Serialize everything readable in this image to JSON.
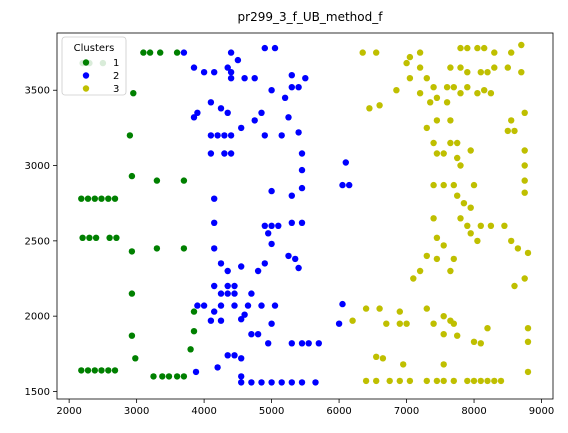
{
  "chart_data": {
    "type": "scatter",
    "title": "pr299_3_f_UB_method_f",
    "xlabel": "",
    "ylabel": "",
    "xlim": [
      1820,
      9170
    ],
    "ylim": [
      1450,
      3880
    ],
    "xticks": [
      2000,
      3000,
      4000,
      5000,
      6000,
      7000,
      8000,
      9000
    ],
    "yticks": [
      1500,
      2000,
      2500,
      3000,
      3500
    ],
    "grid": false,
    "legend": {
      "title": "Clusters",
      "position": "top-left"
    },
    "series": [
      {
        "name": "1",
        "color": "#008000",
        "points": [
          [
            2200,
            3680
          ],
          [
            2300,
            3680
          ],
          [
            2500,
            3680
          ],
          [
            3100,
            3750
          ],
          [
            3200,
            3750
          ],
          [
            3350,
            3750
          ],
          [
            3600,
            3750
          ],
          [
            2950,
            3480
          ],
          [
            2900,
            3200
          ],
          [
            2930,
            2930
          ],
          [
            3300,
            2900
          ],
          [
            3700,
            2900
          ],
          [
            2180,
            2780
          ],
          [
            2280,
            2780
          ],
          [
            2380,
            2780
          ],
          [
            2480,
            2780
          ],
          [
            2580,
            2780
          ],
          [
            2680,
            2780
          ],
          [
            2200,
            2520
          ],
          [
            2300,
            2520
          ],
          [
            2400,
            2520
          ],
          [
            2600,
            2520
          ],
          [
            2700,
            2520
          ],
          [
            2930,
            2430
          ],
          [
            3300,
            2450
          ],
          [
            3700,
            2450
          ],
          [
            2930,
            2150
          ],
          [
            3850,
            2030
          ],
          [
            3850,
            1900
          ],
          [
            3800,
            1780
          ],
          [
            2930,
            1870
          ],
          [
            2980,
            1720
          ],
          [
            2180,
            1640
          ],
          [
            2280,
            1640
          ],
          [
            2380,
            1640
          ],
          [
            2480,
            1640
          ],
          [
            2580,
            1640
          ],
          [
            2680,
            1640
          ],
          [
            3250,
            1600
          ],
          [
            3380,
            1600
          ],
          [
            3480,
            1600
          ],
          [
            3600,
            1600
          ],
          [
            3700,
            1600
          ]
        ]
      },
      {
        "name": "2",
        "color": "#0000ff",
        "points": [
          [
            3700,
            3750
          ],
          [
            3850,
            3650
          ],
          [
            4000,
            3620
          ],
          [
            4150,
            3620
          ],
          [
            4350,
            3650
          ],
          [
            4400,
            3620
          ],
          [
            4500,
            3700
          ],
          [
            4400,
            3750
          ],
          [
            4900,
            3780
          ],
          [
            5050,
            3780
          ],
          [
            4400,
            3580
          ],
          [
            4600,
            3580
          ],
          [
            4750,
            3580
          ],
          [
            5300,
            3600
          ],
          [
            5500,
            3580
          ],
          [
            5000,
            3500
          ],
          [
            5200,
            3450
          ],
          [
            5300,
            3520
          ],
          [
            5400,
            3520
          ],
          [
            3900,
            3350
          ],
          [
            3850,
            3320
          ],
          [
            4100,
            3420
          ],
          [
            4250,
            3380
          ],
          [
            4350,
            3350
          ],
          [
            4750,
            3300
          ],
          [
            4850,
            3350
          ],
          [
            5250,
            3320
          ],
          [
            4550,
            3250
          ],
          [
            4900,
            3200
          ],
          [
            5150,
            3200
          ],
          [
            5400,
            3220
          ],
          [
            4100,
            3200
          ],
          [
            4200,
            3200
          ],
          [
            4300,
            3200
          ],
          [
            4400,
            3200
          ],
          [
            4100,
            3080
          ],
          [
            4300,
            3080
          ],
          [
            4400,
            3080
          ],
          [
            5450,
            3080
          ],
          [
            5450,
            2970
          ],
          [
            6100,
            3020
          ],
          [
            6050,
            2870
          ],
          [
            6150,
            2870
          ],
          [
            5000,
            2830
          ],
          [
            5300,
            2800
          ],
          [
            5450,
            2850
          ],
          [
            4150,
            2780
          ],
          [
            4900,
            2600
          ],
          [
            5000,
            2600
          ],
          [
            5100,
            2600
          ],
          [
            5300,
            2620
          ],
          [
            5450,
            2620
          ],
          [
            4150,
            2620
          ],
          [
            4150,
            2450
          ],
          [
            5000,
            2480
          ],
          [
            4950,
            2550
          ],
          [
            5250,
            2400
          ],
          [
            5350,
            2380
          ],
          [
            5400,
            2320
          ],
          [
            4900,
            2350
          ],
          [
            4250,
            2350
          ],
          [
            4350,
            2300
          ],
          [
            4150,
            2200
          ],
          [
            4550,
            2330
          ],
          [
            4350,
            2200
          ],
          [
            4450,
            2200
          ],
          [
            4250,
            2150
          ],
          [
            4350,
            2150
          ],
          [
            4450,
            2150
          ],
          [
            4700,
            2150
          ],
          [
            4800,
            2300
          ],
          [
            3900,
            2070
          ],
          [
            4000,
            2070
          ],
          [
            4150,
            2030
          ],
          [
            4250,
            2070
          ],
          [
            4450,
            2070
          ],
          [
            4650,
            2070
          ],
          [
            4850,
            2070
          ],
          [
            5050,
            2070
          ],
          [
            4100,
            1970
          ],
          [
            4250,
            1970
          ],
          [
            4550,
            1980
          ],
          [
            4600,
            2010
          ],
          [
            4700,
            1880
          ],
          [
            4800,
            1880
          ],
          [
            5000,
            1950
          ],
          [
            4950,
            1820
          ],
          [
            5300,
            1820
          ],
          [
            5450,
            1820
          ],
          [
            5550,
            1820
          ],
          [
            5700,
            1820
          ],
          [
            6050,
            2080
          ],
          [
            6000,
            1950
          ],
          [
            4350,
            1740
          ],
          [
            4450,
            1740
          ],
          [
            4550,
            1720
          ],
          [
            4200,
            1660
          ],
          [
            3880,
            1630
          ],
          [
            4550,
            1600
          ],
          [
            4550,
            1560
          ],
          [
            4700,
            1560
          ],
          [
            4850,
            1560
          ],
          [
            5000,
            1560
          ],
          [
            5150,
            1560
          ],
          [
            5300,
            1560
          ],
          [
            5450,
            1560
          ],
          [
            5650,
            1560
          ]
        ]
      },
      {
        "name": "3",
        "color": "#bfbf00",
        "points": [
          [
            6350,
            3750
          ],
          [
            6550,
            3750
          ],
          [
            7050,
            3720
          ],
          [
            7200,
            3750
          ],
          [
            7800,
            3780
          ],
          [
            7900,
            3780
          ],
          [
            8050,
            3780
          ],
          [
            8150,
            3780
          ],
          [
            8300,
            3750
          ],
          [
            8550,
            3750
          ],
          [
            8700,
            3800
          ],
          [
            7000,
            3680
          ],
          [
            7200,
            3650
          ],
          [
            7650,
            3650
          ],
          [
            7800,
            3650
          ],
          [
            7900,
            3620
          ],
          [
            8100,
            3620
          ],
          [
            8200,
            3620
          ],
          [
            8300,
            3650
          ],
          [
            8500,
            3650
          ],
          [
            8700,
            3620
          ],
          [
            7050,
            3580
          ],
          [
            7300,
            3580
          ],
          [
            7400,
            3520
          ],
          [
            7600,
            3520
          ],
          [
            7700,
            3520
          ],
          [
            7800,
            3480
          ],
          [
            7900,
            3520
          ],
          [
            8050,
            3480
          ],
          [
            8150,
            3500
          ],
          [
            8250,
            3480
          ],
          [
            6850,
            3500
          ],
          [
            7200,
            3480
          ],
          [
            7350,
            3420
          ],
          [
            7450,
            3450
          ],
          [
            7600,
            3420
          ],
          [
            6600,
            3400
          ],
          [
            6450,
            3380
          ],
          [
            7300,
            3250
          ],
          [
            7450,
            3300
          ],
          [
            7650,
            3300
          ],
          [
            8500,
            3230
          ],
          [
            8600,
            3230
          ],
          [
            8550,
            3300
          ],
          [
            8750,
            3350
          ],
          [
            7400,
            3150
          ],
          [
            7650,
            3150
          ],
          [
            7750,
            3150
          ],
          [
            7950,
            3100
          ],
          [
            8750,
            3100
          ],
          [
            7450,
            3080
          ],
          [
            7550,
            3080
          ],
          [
            7750,
            3050
          ],
          [
            7800,
            3000
          ],
          [
            8750,
            3000
          ],
          [
            7400,
            2870
          ],
          [
            7550,
            2870
          ],
          [
            7700,
            2870
          ],
          [
            8000,
            2870
          ],
          [
            8750,
            2900
          ],
          [
            8750,
            2820
          ],
          [
            7750,
            2800
          ],
          [
            7850,
            2750
          ],
          [
            7950,
            2720
          ],
          [
            7400,
            2650
          ],
          [
            7800,
            2650
          ],
          [
            8100,
            2600
          ],
          [
            8250,
            2600
          ],
          [
            8450,
            2600
          ],
          [
            7900,
            2600
          ],
          [
            7950,
            2550
          ],
          [
            8050,
            2500
          ],
          [
            7450,
            2520
          ],
          [
            7550,
            2470
          ],
          [
            8550,
            2500
          ],
          [
            8650,
            2450
          ],
          [
            8800,
            2420
          ],
          [
            7300,
            2400
          ],
          [
            7450,
            2380
          ],
          [
            7200,
            2300
          ],
          [
            7100,
            2250
          ],
          [
            7700,
            2380
          ],
          [
            7650,
            2300
          ],
          [
            8750,
            2250
          ],
          [
            8600,
            2200
          ],
          [
            6400,
            2050
          ],
          [
            6600,
            2050
          ],
          [
            6900,
            2030
          ],
          [
            7000,
            1950
          ],
          [
            7300,
            2050
          ],
          [
            7550,
            2000
          ],
          [
            7650,
            1970
          ],
          [
            7700,
            1950
          ],
          [
            6200,
            1970
          ],
          [
            6700,
            1950
          ],
          [
            6900,
            1950
          ],
          [
            7400,
            1950
          ],
          [
            7550,
            1880
          ],
          [
            7750,
            1870
          ],
          [
            8000,
            1830
          ],
          [
            8100,
            1820
          ],
          [
            8200,
            1920
          ],
          [
            8800,
            1920
          ],
          [
            8800,
            1830
          ],
          [
            6550,
            1730
          ],
          [
            6650,
            1720
          ],
          [
            6950,
            1680
          ],
          [
            7550,
            1680
          ],
          [
            8800,
            1630
          ],
          [
            6400,
            1570
          ],
          [
            6550,
            1570
          ],
          [
            6750,
            1570
          ],
          [
            6900,
            1570
          ],
          [
            7050,
            1570
          ],
          [
            7300,
            1570
          ],
          [
            7450,
            1570
          ],
          [
            7550,
            1570
          ],
          [
            7700,
            1570
          ],
          [
            7900,
            1570
          ],
          [
            8000,
            1570
          ],
          [
            8100,
            1570
          ],
          [
            8200,
            1570
          ],
          [
            8300,
            1570
          ],
          [
            8400,
            1570
          ]
        ]
      }
    ]
  }
}
